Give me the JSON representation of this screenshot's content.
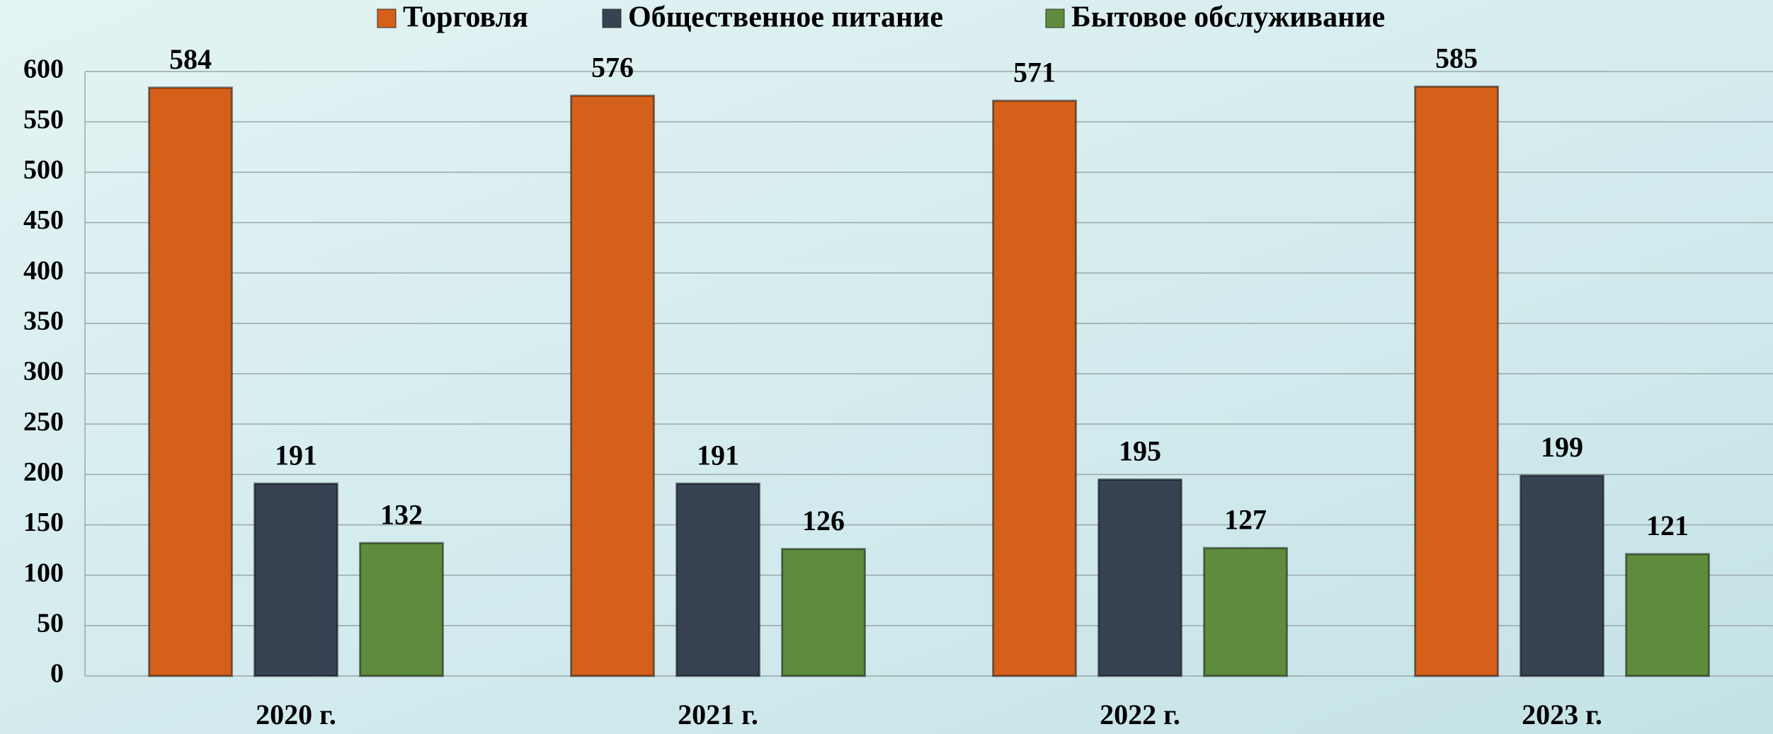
{
  "chart_data": {
    "type": "bar",
    "categories": [
      "2020 г.",
      "2021 г.",
      "2022 г.",
      "2023 г."
    ],
    "series": [
      {
        "name": "Торговля",
        "color": "#d4601a",
        "values": [
          584,
          576,
          571,
          585
        ]
      },
      {
        "name": "Общественное питание",
        "color": "#374253",
        "values": [
          191,
          191,
          195,
          199
        ]
      },
      {
        "name": "Бытовое обслуживание",
        "color": "#5e8c3c",
        "values": [
          132,
          126,
          127,
          121
        ]
      }
    ],
    "ylim": [
      0,
      600
    ],
    "yticks": [
      0,
      50,
      100,
      150,
      200,
      250,
      300,
      350,
      400,
      450,
      500,
      550,
      600
    ],
    "grid": true,
    "legend": "top"
  }
}
